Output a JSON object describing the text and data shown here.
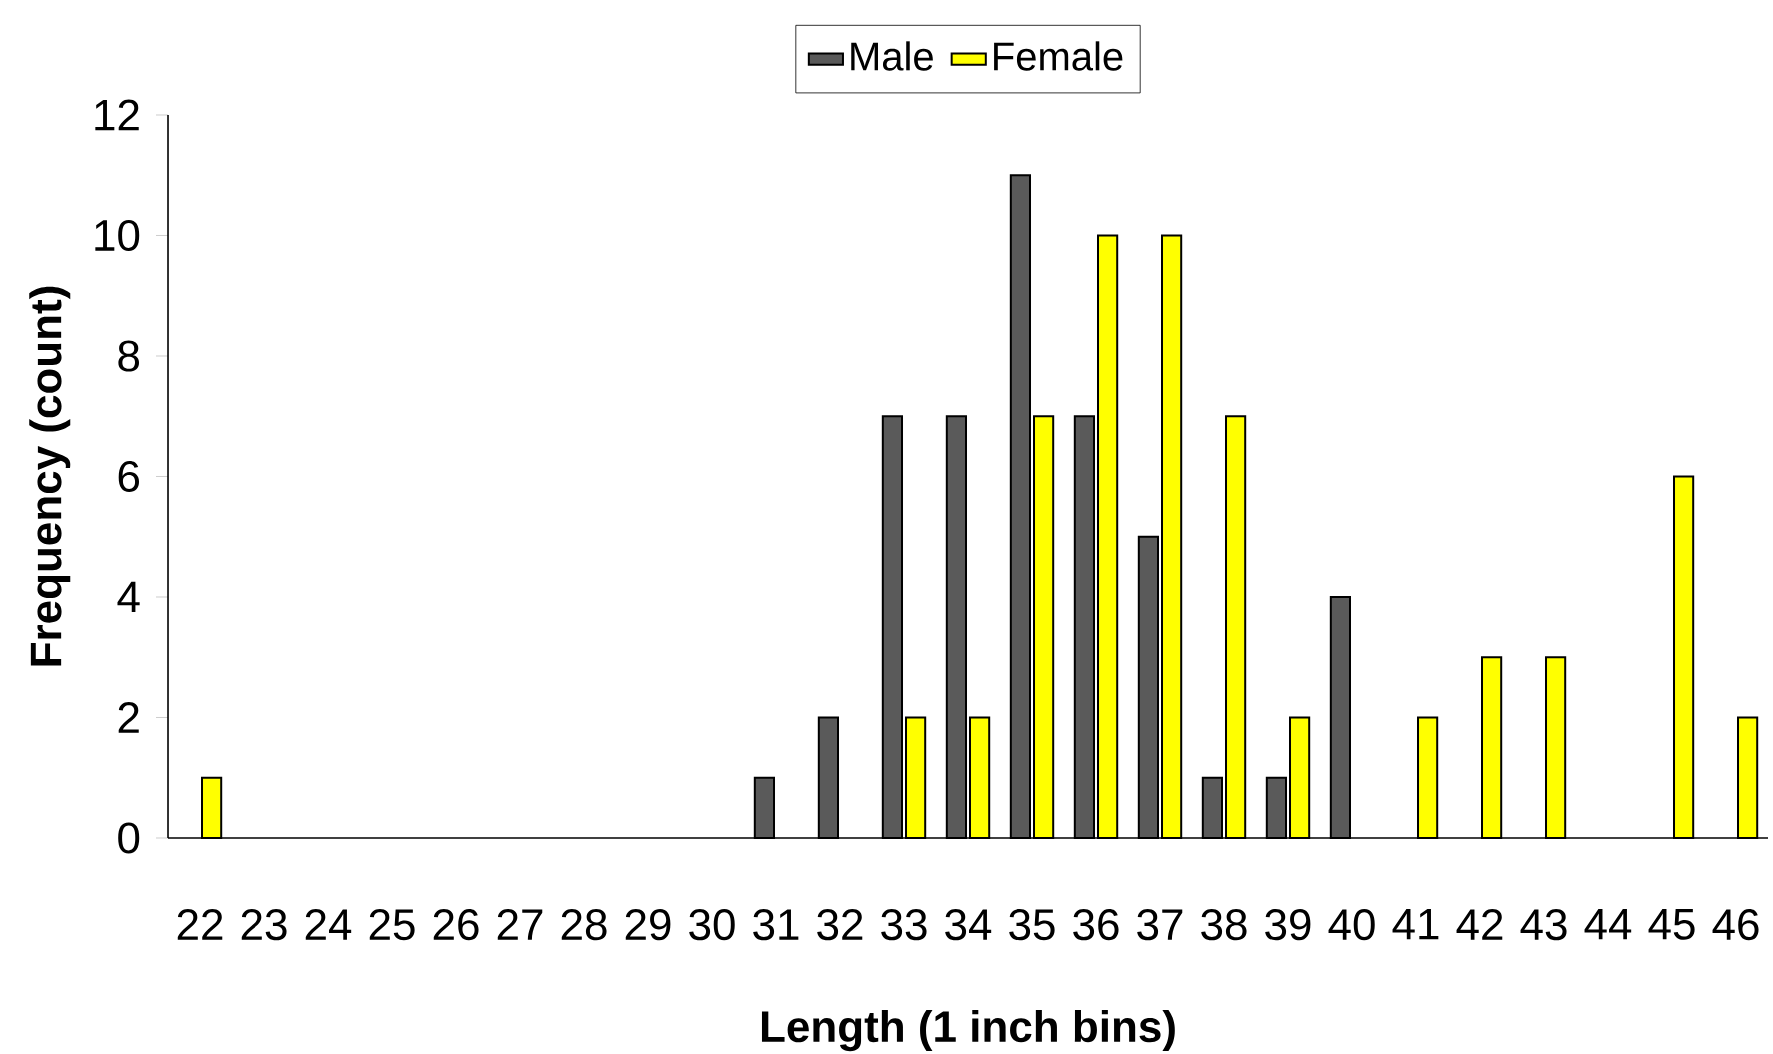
{
  "chart_data": {
    "type": "bar",
    "xlabel": "Length (1 inch bins)",
    "ylabel": "Frequency (count)",
    "categories": [
      "22",
      "23",
      "24",
      "25",
      "26",
      "27",
      "28",
      "29",
      "30",
      "31",
      "32",
      "33",
      "34",
      "35",
      "36",
      "37",
      "38",
      "39",
      "40",
      "41",
      "42",
      "43",
      "44",
      "45",
      "46"
    ],
    "series": [
      {
        "name": "Male",
        "color": "#5a5a5a",
        "values": [
          null,
          null,
          null,
          null,
          null,
          null,
          null,
          null,
          null,
          1,
          2,
          7,
          7,
          11,
          7,
          5,
          1,
          1,
          4,
          null,
          null,
          null,
          null,
          null,
          null
        ]
      },
      {
        "name": "Female",
        "color": "#ffff00",
        "values": [
          1,
          null,
          null,
          null,
          null,
          null,
          null,
          null,
          null,
          null,
          null,
          2,
          2,
          7,
          10,
          10,
          7,
          2,
          null,
          2,
          3,
          3,
          null,
          6,
          2
        ]
      }
    ],
    "ylim": [
      0,
      12
    ],
    "yticks": [
      0,
      2,
      4,
      6,
      8,
      10,
      12
    ],
    "grid": false,
    "legend": "top"
  }
}
